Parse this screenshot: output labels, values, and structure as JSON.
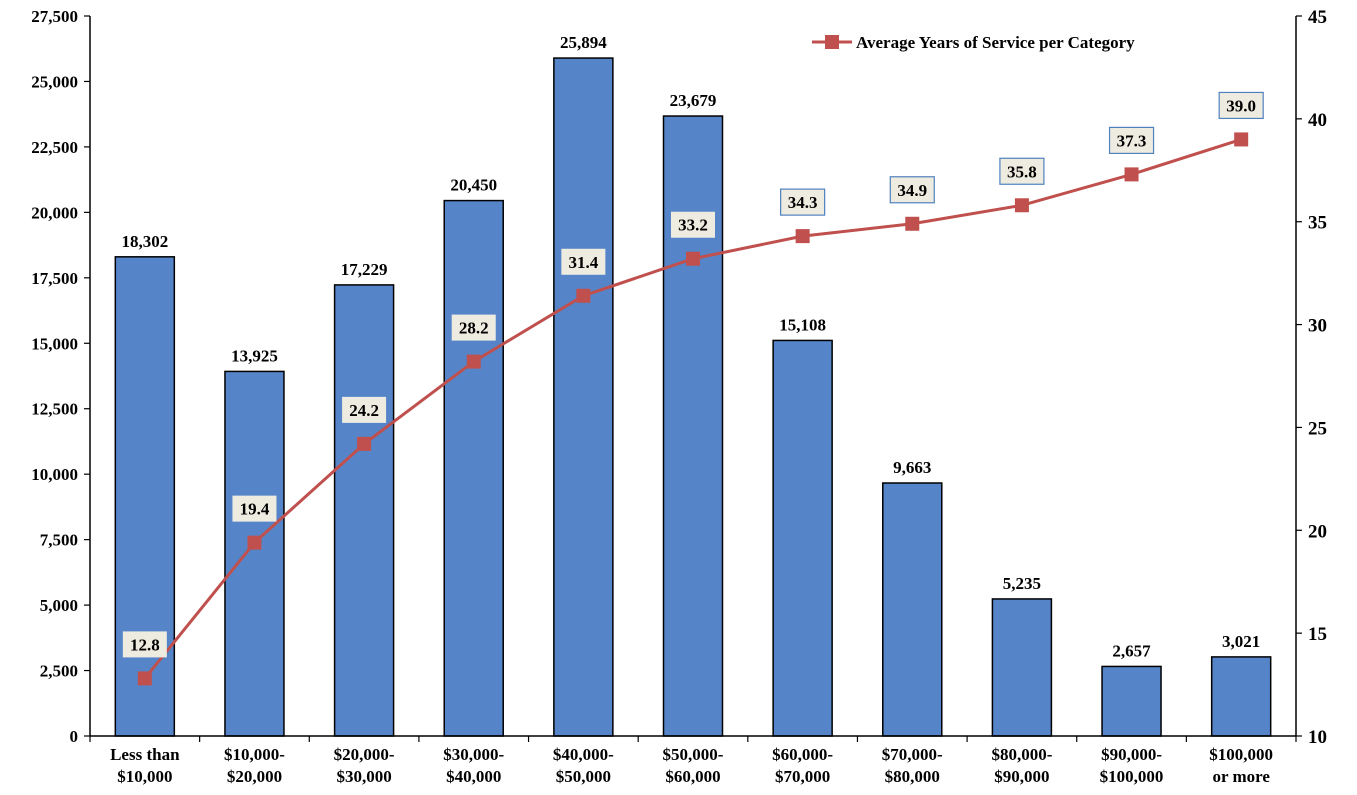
{
  "chart_data": {
    "type": "bar",
    "categories": [
      [
        "Less than",
        "$10,000"
      ],
      [
        "$10,000-",
        "$20,000"
      ],
      [
        "$20,000-",
        "$30,000"
      ],
      [
        "$30,000-",
        "$40,000"
      ],
      [
        "$40,000-",
        "$50,000"
      ],
      [
        "$50,000-",
        "$60,000"
      ],
      [
        "$60,000-",
        "$70,000"
      ],
      [
        "$70,000-",
        "$80,000"
      ],
      [
        "$80,000-",
        "$90,000"
      ],
      [
        "$90,000-",
        "$100,000"
      ],
      [
        "$100,000",
        "or more"
      ]
    ],
    "series": [
      {
        "type": "bar",
        "axis": "left",
        "values": [
          18302,
          13925,
          17229,
          20450,
          25894,
          23679,
          15108,
          9663,
          5235,
          2657,
          3021
        ],
        "labels": [
          "18,302",
          "13,925",
          "17,229",
          "20,450",
          "25,894",
          "23,679",
          "15,108",
          "9,663",
          "5,235",
          "2,657",
          "3,021"
        ],
        "color": "#5585c8"
      },
      {
        "name": "Average Years of Service per Category",
        "type": "line",
        "axis": "right",
        "values": [
          12.8,
          19.4,
          24.2,
          28.2,
          31.4,
          33.2,
          34.3,
          34.9,
          35.8,
          37.3,
          39.0
        ],
        "labels": [
          "12.8",
          "19.4",
          "24.2",
          "28.2",
          "31.4",
          "33.2",
          "34.3",
          "34.9",
          "35.8",
          "37.3",
          "39.0"
        ],
        "label_boxed": [
          false,
          false,
          false,
          false,
          false,
          false,
          true,
          true,
          true,
          true,
          true
        ],
        "color": "#c0504d"
      }
    ],
    "y_left": {
      "min": 0,
      "max": 27500,
      "ticks": [
        0,
        2500,
        5000,
        7500,
        10000,
        12500,
        15000,
        17500,
        20000,
        22500,
        25000,
        27500
      ],
      "tick_labels": [
        "0",
        "2,500",
        "5,000",
        "7,500",
        "10,000",
        "12,500",
        "15,000",
        "17,500",
        "20,000",
        "22,500",
        "25,000",
        "27,500"
      ]
    },
    "y_right": {
      "min": 10,
      "max": 45,
      "ticks": [
        10,
        15,
        20,
        25,
        30,
        35,
        40,
        45
      ],
      "tick_labels": [
        "10",
        "15",
        "20",
        "25",
        "30",
        "35",
        "40",
        "45"
      ]
    },
    "legend": {
      "placement": "top-right",
      "entries": [
        "Average Years of Service per Category"
      ]
    },
    "grid": false,
    "colors": {
      "bar_fill": "#5585c8",
      "bar_stroke": "#000000",
      "line": "#c0504d",
      "label_bg": "#eeece1",
      "label_box_stroke": "#4f81bd"
    }
  }
}
